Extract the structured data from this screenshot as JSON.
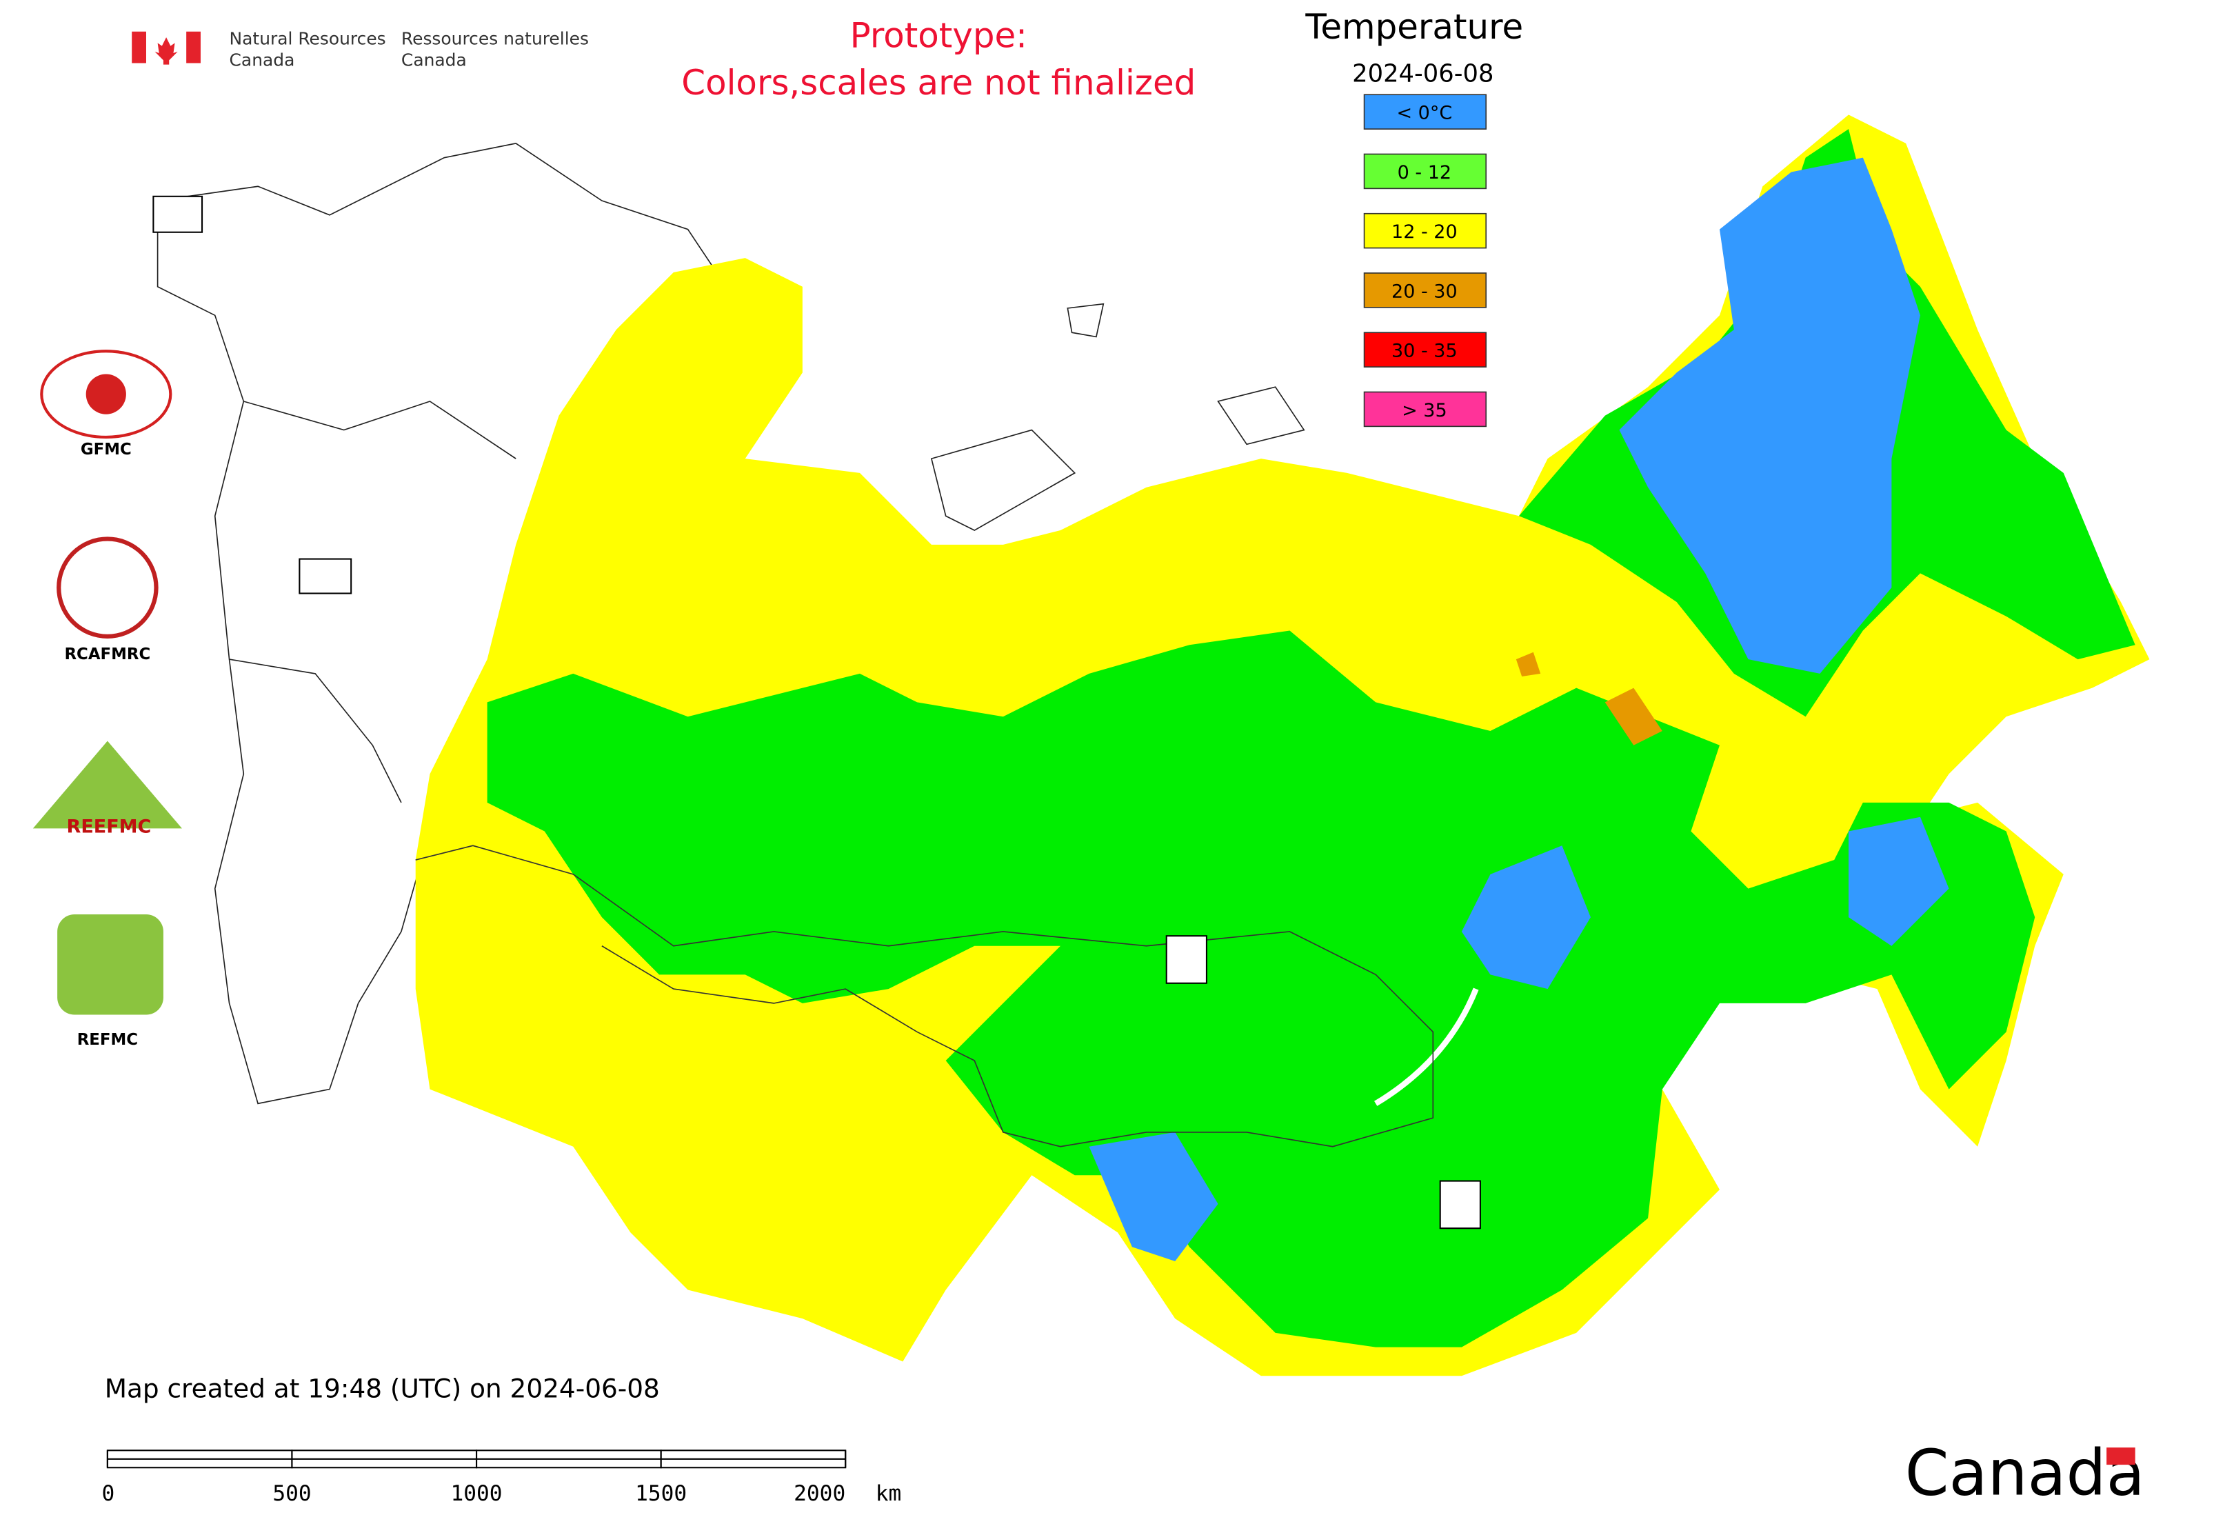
{
  "header": {
    "department_en": [
      "Natural Resources",
      "Canada"
    ],
    "department_fr": [
      "Ressources naturelles",
      "Canada"
    ],
    "notice": [
      "Prototype:",
      "Colors,scales are not finalized"
    ]
  },
  "legend": {
    "title": "Temperature",
    "date": "2024-06-08",
    "items": [
      {
        "label": "< 0°C",
        "color": "#3399ff"
      },
      {
        "label": "0 - 12",
        "color": "#66ff33"
      },
      {
        "label": "12 - 20",
        "color": "#ffff00"
      },
      {
        "label": "20 - 30",
        "color": "#e69900"
      },
      {
        "label": "30 - 35",
        "color": "#ff0000"
      },
      {
        "label": "> 35",
        "color": "#ff3399"
      }
    ]
  },
  "logos": [
    "GFMC",
    "RCAFMRC",
    "REEFMC",
    "REFMC"
  ],
  "footer": {
    "created": "Map created at 19:48 (UTC) on 2024-06-08",
    "scale_bar": {
      "ticks": [
        0,
        500,
        1000,
        1500,
        2000
      ],
      "unit": "km"
    },
    "wordmark": "Canada"
  }
}
